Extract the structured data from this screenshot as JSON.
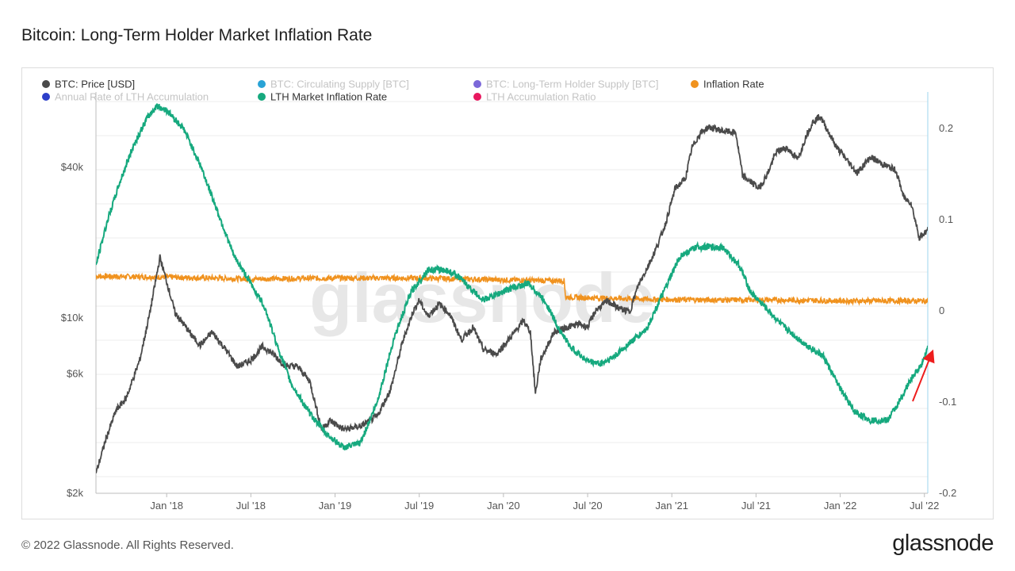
{
  "title": "Bitcoin: Long-Term Holder Market Inflation Rate",
  "footer": "© 2022 Glassnode. All Rights Reserved.",
  "brand": "glassnode",
  "watermark": "glassnode",
  "colors": {
    "price": "#4a4a4a",
    "supply": "#29a3d6",
    "lth_supply": "#7b68d9",
    "inflation": "#f0921e",
    "annual_acc": "#2d3fc9",
    "lth_mir": "#16a97e",
    "acc_ratio": "#e8185f",
    "arrow": "#ee1d1d"
  },
  "chart_data": {
    "type": "line",
    "title": "Bitcoin: Long-Term Holder Market Inflation Rate",
    "x_ticks": [
      "Jan '18",
      "Jul '18",
      "Jan '19",
      "Jul '19",
      "Jan '20",
      "Jul '20",
      "Jan '21",
      "Jul '21",
      "Jan '22",
      "Jul '22"
    ],
    "x_range": [
      "2017-08",
      "2022-07"
    ],
    "y_left": {
      "scale": "log",
      "range": [
        2000,
        80000
      ],
      "ticks": [
        "$2k",
        "$6k",
        "$10k",
        "$40k"
      ],
      "tick_values": [
        2000,
        6000,
        10000,
        40000
      ]
    },
    "y_right": {
      "scale": "linear",
      "range": [
        -0.2,
        0.24
      ],
      "ticks": [
        "0.2",
        "0.1",
        "0",
        "-0.1",
        "-0.2"
      ],
      "tick_values": [
        0.2,
        0.1,
        0,
        -0.1,
        -0.2
      ]
    },
    "legend": [
      {
        "label": "BTC: Price [USD]",
        "color": "#4a4a4a",
        "active": true
      },
      {
        "label": "BTC: Circulating Supply [BTC]",
        "color": "#29a3d6",
        "active": false
      },
      {
        "label": "BTC: Long-Term Holder Supply [BTC]",
        "color": "#7b68d9",
        "active": false
      },
      {
        "label": "Inflation Rate",
        "color": "#f0921e",
        "active": true
      },
      {
        "label": "Annual Rate of LTH Accumulation",
        "color": "#2d3fc9",
        "active": false
      },
      {
        "label": "LTH Market Inflation Rate",
        "color": "#16a97e",
        "active": true
      },
      {
        "label": "LTH Accumulation Ratio",
        "color": "#e8185f",
        "active": false
      }
    ],
    "series": [
      {
        "name": "BTC: Price [USD]",
        "axis": "left",
        "x": [
          2017.58,
          2017.64,
          2017.7,
          2017.76,
          2017.84,
          2017.9,
          2017.96,
          2018.0,
          2018.05,
          2018.1,
          2018.15,
          2018.2,
          2018.27,
          2018.35,
          2018.42,
          2018.5,
          2018.57,
          2018.62,
          2018.7,
          2018.78,
          2018.85,
          2018.92,
          2018.97,
          2019.05,
          2019.15,
          2019.25,
          2019.33,
          2019.4,
          2019.46,
          2019.5,
          2019.55,
          2019.62,
          2019.68,
          2019.75,
          2019.82,
          2019.88,
          2019.96,
          2020.05,
          2020.12,
          2020.16,
          2020.19,
          2020.22,
          2020.3,
          2020.38,
          2020.45,
          2020.5,
          2020.55,
          2020.62,
          2020.68,
          2020.75,
          2020.8,
          2020.85,
          2020.9,
          2020.96,
          2021.02,
          2021.08,
          2021.12,
          2021.17,
          2021.22,
          2021.3,
          2021.38,
          2021.42,
          2021.47,
          2021.52,
          2021.57,
          2021.62,
          2021.68,
          2021.75,
          2021.8,
          2021.84,
          2021.88,
          2021.92,
          2021.98,
          2022.05,
          2022.1,
          2022.18,
          2022.26,
          2022.33,
          2022.38,
          2022.42,
          2022.47,
          2022.52
        ],
        "y": [
          2400,
          3300,
          4300,
          4800,
          6800,
          10500,
          17500,
          14000,
          10500,
          9500,
          8500,
          7800,
          8800,
          7500,
          6400,
          6800,
          7700,
          7300,
          6500,
          6400,
          5600,
          3600,
          3900,
          3600,
          3700,
          4050,
          5200,
          8000,
          10500,
          11800,
          10200,
          11400,
          10400,
          8200,
          9200,
          7500,
          7200,
          8500,
          9800,
          8800,
          5000,
          6800,
          8800,
          9200,
          9500,
          9200,
          10800,
          11700,
          11000,
          10600,
          13500,
          15700,
          18500,
          23500,
          33000,
          36000,
          48000,
          55000,
          58000,
          56000,
          55000,
          37000,
          35000,
          33000,
          38000,
          46000,
          48000,
          43000,
          54000,
          61000,
          64000,
          57000,
          48000,
          42000,
          38000,
          44000,
          41000,
          39000,
          30000,
          29000,
          21000,
          22500
        ]
      },
      {
        "name": "Inflation Rate",
        "axis": "right",
        "x": [
          2017.58,
          2018.0,
          2018.5,
          2019.0,
          2019.5,
          2020.0,
          2020.36,
          2020.37,
          2020.8,
          2021.2,
          2021.6,
          2022.0,
          2022.52
        ],
        "y": [
          0.038,
          0.037,
          0.035,
          0.036,
          0.036,
          0.034,
          0.033,
          0.015,
          0.013,
          0.012,
          0.012,
          0.011,
          0.011
        ]
      },
      {
        "name": "LTH Market Inflation Rate",
        "axis": "right",
        "x": [
          2017.58,
          2017.65,
          2017.72,
          2017.8,
          2017.88,
          2017.94,
          2018.0,
          2018.1,
          2018.2,
          2018.3,
          2018.4,
          2018.5,
          2018.58,
          2018.66,
          2018.74,
          2018.84,
          2018.95,
          2019.05,
          2019.15,
          2019.25,
          2019.35,
          2019.45,
          2019.55,
          2019.65,
          2019.72,
          2019.8,
          2019.88,
          2019.96,
          2020.05,
          2020.15,
          2020.25,
          2020.33,
          2020.4,
          2020.5,
          2020.58,
          2020.66,
          2020.75,
          2020.85,
          2020.95,
          2021.05,
          2021.15,
          2021.22,
          2021.3,
          2021.4,
          2021.47,
          2021.55,
          2021.65,
          2021.78,
          2021.9,
          2022.0,
          2022.08,
          2022.18,
          2022.28,
          2022.35,
          2022.42,
          2022.48,
          2022.52
        ],
        "y": [
          0.05,
          0.1,
          0.14,
          0.18,
          0.21,
          0.225,
          0.22,
          0.2,
          0.16,
          0.11,
          0.06,
          0.03,
          0.005,
          -0.04,
          -0.08,
          -0.11,
          -0.135,
          -0.15,
          -0.145,
          -0.1,
          -0.03,
          0.02,
          0.045,
          0.045,
          0.04,
          0.025,
          0.012,
          0.018,
          0.025,
          0.03,
          0.01,
          -0.02,
          -0.04,
          -0.055,
          -0.058,
          -0.05,
          -0.035,
          -0.02,
          0.02,
          0.06,
          0.07,
          0.07,
          0.07,
          0.05,
          0.02,
          0.005,
          -0.015,
          -0.035,
          -0.05,
          -0.085,
          -0.11,
          -0.12,
          -0.12,
          -0.1,
          -0.075,
          -0.06,
          -0.04
        ]
      }
    ],
    "annotation": {
      "type": "arrow",
      "points_to": "LTH Market Inflation Rate latest value"
    }
  }
}
